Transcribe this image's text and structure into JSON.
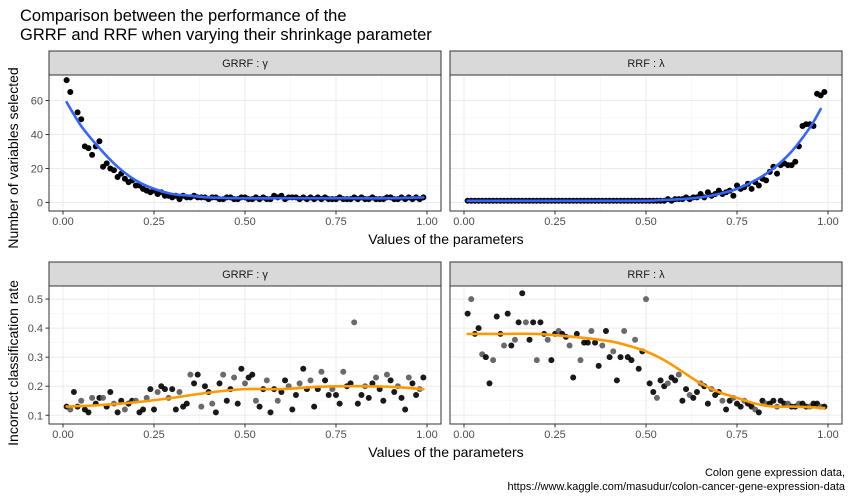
{
  "title_lines": [
    "Comparison between the performance of the",
    "GRRF and RRF when varying their shrinkage parameter"
  ],
  "caption_lines": [
    "Colon gene expression data,",
    "https://www.kaggle.com/masudur/colon-cancer-gene-expression-data"
  ],
  "colors": {
    "smooth_top": "#3366ff",
    "smooth_bottom": "#ff9900",
    "points": "#000000",
    "strip": "#d9d9d9"
  },
  "chart_data": [
    {
      "type": "scatter",
      "panel": "top-left",
      "strip": "GRRF : γ",
      "xlabel": "Values of the parameters",
      "ylabel": "Number of variables selected",
      "xlim": [
        0,
        1
      ],
      "ylim": [
        -5,
        75
      ],
      "xticks": [
        "0.00",
        "0.25",
        "0.50",
        "0.75",
        "1.00"
      ],
      "yticks": [
        "0",
        "20",
        "40",
        "60"
      ],
      "smooth": {
        "x": [
          0.01,
          0.05,
          0.1,
          0.15,
          0.2,
          0.25,
          0.3,
          0.35,
          0.4,
          0.5,
          0.6,
          0.7,
          0.8,
          0.9,
          0.99
        ],
        "y": [
          59,
          45,
          32,
          21,
          13,
          8,
          5,
          4,
          3,
          2.5,
          2.5,
          2.5,
          2.5,
          2.5,
          3
        ]
      },
      "x": [
        0.01,
        0.02,
        0.04,
        0.05,
        0.06,
        0.07,
        0.08,
        0.09,
        0.1,
        0.11,
        0.12,
        0.13,
        0.14,
        0.15,
        0.16,
        0.17,
        0.18,
        0.19,
        0.2,
        0.21,
        0.22,
        0.23,
        0.24,
        0.25,
        0.26,
        0.27,
        0.28,
        0.29,
        0.3,
        0.31,
        0.32,
        0.33,
        0.34,
        0.35,
        0.36,
        0.37,
        0.38,
        0.39,
        0.4,
        0.41,
        0.42,
        0.43,
        0.44,
        0.45,
        0.46,
        0.47,
        0.48,
        0.49,
        0.5,
        0.51,
        0.52,
        0.53,
        0.54,
        0.55,
        0.56,
        0.57,
        0.58,
        0.59,
        0.6,
        0.61,
        0.62,
        0.63,
        0.64,
        0.65,
        0.66,
        0.67,
        0.68,
        0.69,
        0.7,
        0.71,
        0.72,
        0.73,
        0.74,
        0.75,
        0.76,
        0.77,
        0.78,
        0.79,
        0.8,
        0.81,
        0.82,
        0.83,
        0.84,
        0.85,
        0.86,
        0.87,
        0.88,
        0.89,
        0.9,
        0.91,
        0.92,
        0.93,
        0.94,
        0.95,
        0.96,
        0.97,
        0.98,
        0.99
      ],
      "y": [
        72,
        65,
        53,
        49,
        33,
        32,
        28,
        33,
        36,
        21,
        23,
        20,
        19,
        15,
        17,
        14,
        12,
        13,
        10,
        10,
        8,
        7,
        6,
        7,
        5,
        6,
        4,
        4,
        3,
        4,
        2,
        4,
        3,
        3,
        4,
        3,
        3,
        3,
        2,
        3,
        3,
        2,
        2,
        3,
        3,
        2,
        2,
        3,
        3,
        2,
        2,
        3,
        2,
        3,
        2,
        2,
        4,
        3,
        4,
        2,
        3,
        3,
        3,
        2,
        3,
        2,
        3,
        2,
        3,
        2,
        3,
        2,
        2,
        2,
        3,
        2,
        2,
        2,
        3,
        2,
        3,
        2,
        2,
        3,
        2,
        2,
        2,
        3,
        3,
        2,
        2,
        3,
        2,
        3,
        2,
        3,
        2,
        3
      ]
    },
    {
      "type": "scatter",
      "panel": "top-right",
      "strip": "RRF : λ",
      "xlabel": "Values of the parameters",
      "ylabel": "Number of variables selected",
      "xlim": [
        0,
        1
      ],
      "ylim": [
        -5,
        75
      ],
      "xticks": [
        "0.00",
        "0.25",
        "0.50",
        "0.75",
        "1.00"
      ],
      "yticks": [
        "0",
        "20",
        "40",
        "60"
      ],
      "smooth": {
        "x": [
          0.01,
          0.1,
          0.2,
          0.3,
          0.4,
          0.5,
          0.55,
          0.6,
          0.65,
          0.7,
          0.75,
          0.8,
          0.85,
          0.9,
          0.95,
          0.98
        ],
        "y": [
          1,
          1,
          1,
          1,
          1,
          1,
          1.5,
          2,
          3,
          5,
          8,
          13,
          20,
          30,
          44,
          55
        ]
      },
      "x": [
        0.01,
        0.02,
        0.03,
        0.04,
        0.05,
        0.06,
        0.07,
        0.08,
        0.09,
        0.1,
        0.11,
        0.12,
        0.13,
        0.14,
        0.15,
        0.16,
        0.17,
        0.18,
        0.19,
        0.2,
        0.21,
        0.22,
        0.23,
        0.24,
        0.25,
        0.26,
        0.27,
        0.28,
        0.29,
        0.3,
        0.31,
        0.32,
        0.33,
        0.34,
        0.35,
        0.36,
        0.37,
        0.38,
        0.39,
        0.4,
        0.41,
        0.42,
        0.43,
        0.44,
        0.45,
        0.46,
        0.47,
        0.48,
        0.49,
        0.5,
        0.51,
        0.52,
        0.53,
        0.54,
        0.55,
        0.56,
        0.57,
        0.58,
        0.59,
        0.6,
        0.61,
        0.62,
        0.63,
        0.64,
        0.65,
        0.66,
        0.67,
        0.68,
        0.69,
        0.7,
        0.71,
        0.72,
        0.73,
        0.74,
        0.75,
        0.76,
        0.77,
        0.78,
        0.79,
        0.8,
        0.81,
        0.82,
        0.83,
        0.84,
        0.85,
        0.86,
        0.87,
        0.88,
        0.89,
        0.9,
        0.91,
        0.92,
        0.93,
        0.94,
        0.95,
        0.96,
        0.97,
        0.98,
        0.99
      ],
      "y": [
        1,
        1,
        1,
        1,
        1,
        1,
        1,
        1,
        1,
        1,
        1,
        1,
        1,
        1,
        1,
        1,
        1,
        1,
        1,
        1,
        1,
        1,
        1,
        1,
        1,
        1,
        1,
        1,
        1,
        1,
        1,
        1,
        1,
        1,
        1,
        1,
        1,
        1,
        1,
        1,
        1,
        1,
        1,
        1,
        1,
        1,
        1,
        1,
        1,
        1,
        1,
        1,
        1,
        1,
        1,
        2,
        1,
        2,
        2,
        2,
        3,
        2,
        3,
        3,
        5,
        3,
        6,
        4,
        5,
        7,
        5,
        6,
        7,
        4,
        10,
        8,
        9,
        11,
        8,
        12,
        10,
        14,
        13,
        18,
        21,
        17,
        22,
        23,
        22,
        22,
        24,
        33,
        45,
        46,
        46,
        45,
        64,
        63,
        65
      ]
    },
    {
      "type": "scatter",
      "panel": "bottom-left",
      "strip": "GRRF : γ",
      "xlabel": "Values of the parameters",
      "ylabel": "Incorrect classification rate",
      "xlim": [
        0,
        1
      ],
      "ylim": [
        0.07,
        0.545
      ],
      "xticks": [
        "0.00",
        "0.25",
        "0.50",
        "0.75",
        "1.00"
      ],
      "yticks": [
        "0.1",
        "0.2",
        "0.3",
        "0.4",
        "0.5"
      ],
      "smooth": {
        "x": [
          0.01,
          0.1,
          0.2,
          0.3,
          0.4,
          0.5,
          0.6,
          0.7,
          0.8,
          0.9,
          0.99
        ],
        "y": [
          0.13,
          0.135,
          0.145,
          0.16,
          0.178,
          0.19,
          0.19,
          0.198,
          0.2,
          0.198,
          0.19
        ]
      },
      "x": [
        0.01,
        0.02,
        0.03,
        0.04,
        0.05,
        0.06,
        0.07,
        0.08,
        0.09,
        0.1,
        0.11,
        0.12,
        0.13,
        0.14,
        0.15,
        0.16,
        0.17,
        0.18,
        0.19,
        0.2,
        0.21,
        0.22,
        0.23,
        0.24,
        0.25,
        0.26,
        0.27,
        0.28,
        0.29,
        0.3,
        0.31,
        0.32,
        0.33,
        0.34,
        0.35,
        0.36,
        0.37,
        0.38,
        0.39,
        0.4,
        0.41,
        0.42,
        0.43,
        0.44,
        0.45,
        0.46,
        0.47,
        0.48,
        0.49,
        0.5,
        0.51,
        0.52,
        0.53,
        0.54,
        0.55,
        0.56,
        0.57,
        0.58,
        0.59,
        0.6,
        0.61,
        0.62,
        0.63,
        0.64,
        0.65,
        0.66,
        0.67,
        0.68,
        0.69,
        0.7,
        0.71,
        0.72,
        0.73,
        0.74,
        0.75,
        0.76,
        0.77,
        0.78,
        0.79,
        0.8,
        0.81,
        0.82,
        0.83,
        0.84,
        0.85,
        0.86,
        0.87,
        0.88,
        0.89,
        0.9,
        0.91,
        0.92,
        0.93,
        0.94,
        0.95,
        0.96,
        0.97,
        0.98,
        0.99
      ],
      "y": [
        0.13,
        0.12,
        0.18,
        0.13,
        0.15,
        0.12,
        0.11,
        0.16,
        0.14,
        0.16,
        0.16,
        0.13,
        0.18,
        0.14,
        0.11,
        0.15,
        0.12,
        0.14,
        0.15,
        0.15,
        0.11,
        0.12,
        0.16,
        0.19,
        0.12,
        0.18,
        0.2,
        0.19,
        0.16,
        0.19,
        0.12,
        0.18,
        0.13,
        0.14,
        0.24,
        0.21,
        0.24,
        0.13,
        0.2,
        0.18,
        0.14,
        0.11,
        0.21,
        0.24,
        0.15,
        0.19,
        0.23,
        0.14,
        0.26,
        0.21,
        0.23,
        0.24,
        0.15,
        0.13,
        0.19,
        0.22,
        0.11,
        0.19,
        0.15,
        0.18,
        0.22,
        0.2,
        0.12,
        0.17,
        0.21,
        0.26,
        0.19,
        0.22,
        0.13,
        0.19,
        0.25,
        0.22,
        0.17,
        0.19,
        0.17,
        0.14,
        0.25,
        0.2,
        0.21,
        0.42,
        0.14,
        0.17,
        0.2,
        0.16,
        0.21,
        0.23,
        0.19,
        0.15,
        0.24,
        0.22,
        0.18,
        0.2,
        0.16,
        0.12,
        0.23,
        0.21,
        0.17,
        0.19,
        0.23
      ]
    },
    {
      "type": "scatter",
      "panel": "bottom-right",
      "strip": "RRF : λ",
      "xlabel": "Values of the parameters",
      "ylabel": "Incorrect classification rate",
      "xlim": [
        0,
        1
      ],
      "ylim": [
        0.07,
        0.545
      ],
      "xticks": [
        "0.00",
        "0.25",
        "0.50",
        "0.75",
        "1.00"
      ],
      "yticks": [
        "0.1",
        "0.2",
        "0.3",
        "0.4",
        "0.5"
      ],
      "smooth": {
        "x": [
          0.01,
          0.1,
          0.2,
          0.3,
          0.4,
          0.45,
          0.5,
          0.55,
          0.6,
          0.65,
          0.7,
          0.75,
          0.8,
          0.85,
          0.9,
          0.95,
          0.99
        ],
        "y": [
          0.38,
          0.38,
          0.38,
          0.37,
          0.355,
          0.34,
          0.32,
          0.29,
          0.25,
          0.21,
          0.18,
          0.16,
          0.14,
          0.13,
          0.13,
          0.128,
          0.125
        ]
      },
      "x": [
        0.01,
        0.02,
        0.03,
        0.04,
        0.05,
        0.06,
        0.07,
        0.08,
        0.09,
        0.1,
        0.11,
        0.12,
        0.13,
        0.14,
        0.15,
        0.16,
        0.17,
        0.18,
        0.19,
        0.2,
        0.21,
        0.22,
        0.23,
        0.24,
        0.25,
        0.26,
        0.27,
        0.28,
        0.29,
        0.3,
        0.31,
        0.32,
        0.33,
        0.34,
        0.35,
        0.36,
        0.37,
        0.38,
        0.39,
        0.4,
        0.41,
        0.42,
        0.43,
        0.44,
        0.45,
        0.46,
        0.47,
        0.48,
        0.49,
        0.5,
        0.51,
        0.52,
        0.53,
        0.54,
        0.55,
        0.56,
        0.57,
        0.58,
        0.59,
        0.6,
        0.61,
        0.62,
        0.63,
        0.64,
        0.65,
        0.66,
        0.67,
        0.68,
        0.69,
        0.7,
        0.71,
        0.72,
        0.73,
        0.74,
        0.75,
        0.76,
        0.77,
        0.78,
        0.79,
        0.8,
        0.81,
        0.82,
        0.83,
        0.84,
        0.85,
        0.86,
        0.87,
        0.88,
        0.89,
        0.9,
        0.91,
        0.92,
        0.93,
        0.94,
        0.95,
        0.96,
        0.97,
        0.98,
        0.99
      ],
      "y": [
        0.45,
        0.5,
        0.38,
        0.4,
        0.31,
        0.3,
        0.21,
        0.29,
        0.44,
        0.38,
        0.34,
        0.45,
        0.34,
        0.36,
        0.42,
        0.52,
        0.42,
        0.36,
        0.42,
        0.29,
        0.42,
        0.38,
        0.36,
        0.29,
        0.38,
        0.39,
        0.38,
        0.37,
        0.34,
        0.23,
        0.38,
        0.29,
        0.35,
        0.35,
        0.39,
        0.35,
        0.27,
        0.34,
        0.39,
        0.3,
        0.32,
        0.22,
        0.3,
        0.39,
        0.3,
        0.29,
        0.36,
        0.26,
        0.32,
        0.5,
        0.21,
        0.18,
        0.16,
        0.22,
        0.2,
        0.21,
        0.23,
        0.22,
        0.24,
        0.15,
        0.19,
        0.17,
        0.16,
        0.18,
        0.21,
        0.2,
        0.14,
        0.19,
        0.17,
        0.18,
        0.15,
        0.12,
        0.15,
        0.16,
        0.14,
        0.13,
        0.15,
        0.14,
        0.13,
        0.12,
        0.11,
        0.15,
        0.14,
        0.14,
        0.15,
        0.13,
        0.15,
        0.14,
        0.14,
        0.13,
        0.13,
        0.14,
        0.14,
        0.13,
        0.13,
        0.14,
        0.14,
        0.13,
        0.13
      ]
    }
  ]
}
